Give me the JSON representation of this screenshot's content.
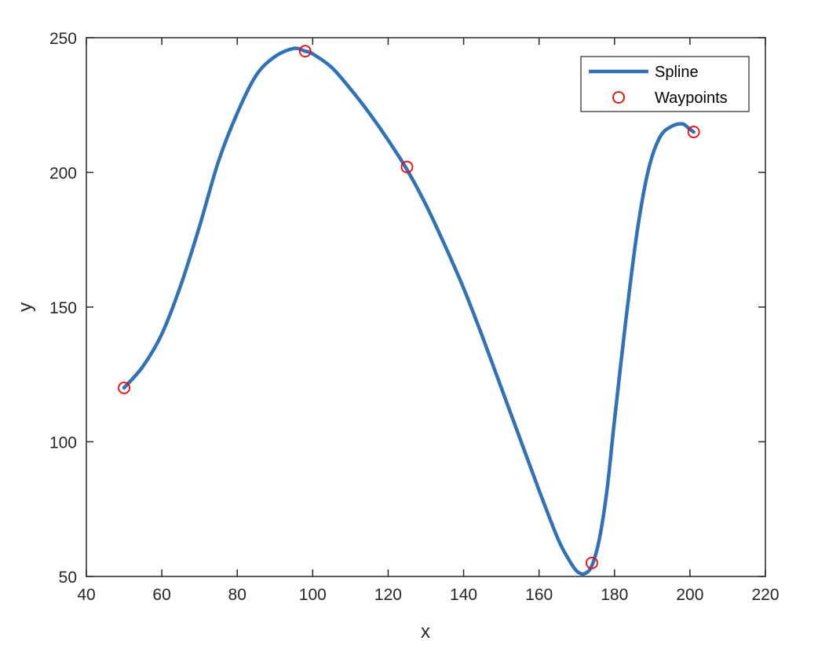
{
  "chart_data": {
    "type": "line",
    "xlabel": "x",
    "ylabel": "y",
    "xlim": [
      40,
      220
    ],
    "ylim": [
      50,
      250
    ],
    "xticks": [
      40,
      60,
      80,
      100,
      120,
      140,
      160,
      180,
      200,
      220
    ],
    "yticks": [
      50,
      100,
      150,
      200,
      250
    ],
    "box": true,
    "grid": false,
    "legend_position": "top-right",
    "series": [
      {
        "name": "Spline",
        "kind": "line",
        "color": "#2f72b8",
        "x": [
          50,
          55,
          60,
          65,
          70,
          75,
          80,
          85,
          90,
          95,
          98,
          100,
          105,
          110,
          115,
          120,
          125,
          130,
          135,
          140,
          145,
          150,
          155,
          160,
          165,
          168,
          170,
          172,
          174,
          176,
          178,
          180,
          183,
          186,
          189,
          192,
          195,
          198,
          200,
          201
        ],
        "y": [
          120,
          128,
          140,
          158,
          180,
          204,
          222,
          236,
          243,
          246,
          245,
          244,
          239,
          231,
          222,
          212,
          201,
          188,
          173,
          157,
          139,
          120,
          101,
          82,
          64,
          56,
          52,
          51,
          54,
          64,
          82,
          108,
          145,
          178,
          201,
          213,
          217,
          218,
          216,
          215
        ]
      },
      {
        "name": "Waypoints",
        "kind": "marker",
        "color": "#ff0000",
        "x": [
          50,
          98,
          125,
          174,
          201
        ],
        "y": [
          120,
          245,
          202,
          55,
          215
        ]
      }
    ]
  }
}
